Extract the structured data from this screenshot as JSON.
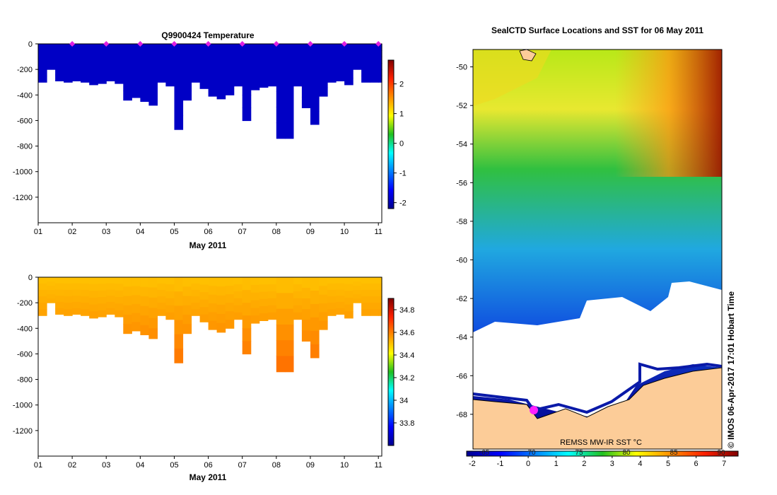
{
  "top_panel": {
    "title": "Q9900424  Temperature",
    "xlabel": "May 2011"
  },
  "bottom_panel": {
    "xlabel": "May 2011"
  },
  "map_panel": {
    "title": "SealCTD Surface Locations and SST for 06 May 2011",
    "source_label": "REMSS MW-IR SST °C",
    "side_label": "© IMOS 06-Apr-2017 17:01 Hobart Time"
  },
  "chart_data": [
    {
      "type": "heatmap",
      "name": "temperature-depth-profile",
      "title": "Q9900424  Temperature",
      "xlabel": "May 2011",
      "ylabel": "",
      "x_ticks": [
        "01",
        "02",
        "03",
        "04",
        "05",
        "06",
        "07",
        "08",
        "09",
        "10",
        "11"
      ],
      "xlim": [
        1,
        11.1
      ],
      "y_ticks": [
        "0",
        "-200",
        "-400",
        "-600",
        "-800",
        "-1000",
        "-1200"
      ],
      "ylim": [
        -1400,
        0
      ],
      "colorbar": {
        "min": -2.2,
        "max": 2.8,
        "ticks": [
          "-2",
          "-1",
          "0",
          "1",
          "2"
        ]
      },
      "profile_day": [
        1.0,
        1.25,
        1.5,
        1.75,
        2.0,
        2.25,
        2.5,
        2.75,
        3.0,
        3.25,
        3.5,
        3.75,
        4.0,
        4.25,
        4.5,
        4.75,
        5.0,
        5.25,
        5.5,
        5.75,
        6.0,
        6.25,
        6.5,
        6.75,
        7.0,
        7.25,
        7.5,
        7.75,
        8.0,
        8.25,
        8.5,
        8.75,
        9.0,
        9.25,
        9.5,
        9.75,
        10.0,
        10.25,
        10.5,
        10.75,
        11.0
      ],
      "profile_max_depth": [
        -300,
        -200,
        -290,
        -300,
        -290,
        -300,
        -320,
        -310,
        -290,
        -310,
        -440,
        -420,
        -450,
        -480,
        -300,
        -330,
        -670,
        -440,
        -300,
        -350,
        -410,
        -430,
        -400,
        -330,
        -600,
        -360,
        -340,
        -330,
        -740,
        -740,
        -330,
        -500,
        -630,
        -410,
        -300,
        -290,
        -320,
        -200,
        -300,
        -300,
        -300
      ],
      "value_at_depth_c": -1.9,
      "markers": {
        "symbol": "diamond",
        "color": "#e020e0",
        "x": [
          2,
          3,
          4,
          5,
          6,
          7,
          8,
          9,
          10,
          11
        ],
        "y": 0
      }
    },
    {
      "type": "heatmap",
      "name": "salinity-depth-profile",
      "title": "",
      "xlabel": "May 2011",
      "x_ticks": [
        "01",
        "02",
        "03",
        "04",
        "05",
        "06",
        "07",
        "08",
        "09",
        "10",
        "11"
      ],
      "xlim": [
        1,
        11.1
      ],
      "y_ticks": [
        "0",
        "-200",
        "-400",
        "-600",
        "-800",
        "-1000",
        "-1200"
      ],
      "ylim": [
        -1400,
        0
      ],
      "colorbar": {
        "min": 33.6,
        "max": 34.9,
        "ticks": [
          "33.8",
          "34",
          "34.2",
          "34.4",
          "34.6",
          "34.8"
        ]
      },
      "surface_value": 34.5,
      "deep_value": 34.6
    },
    {
      "type": "heatmap",
      "name": "sst-map",
      "title": "SealCTD Surface Locations and SST for 06 May 2011",
      "y_ticks": [
        "-50",
        "-52",
        "-54",
        "-56",
        "-58",
        "-60",
        "-62",
        "-64",
        "-66",
        "-68"
      ],
      "ylim": [
        -69.8,
        -49.1
      ],
      "colorbar": {
        "min": -2.2,
        "max": 7.5,
        "ticks": [
          "-2",
          "-1",
          "0",
          "1",
          "2",
          "3",
          "4",
          "5",
          "6",
          "7"
        ],
        "secondary_ticks": [
          "-65",
          "70",
          "75",
          "80",
          "85",
          "90"
        ],
        "label": "REMSS MW-IR SST °C"
      }
    }
  ]
}
